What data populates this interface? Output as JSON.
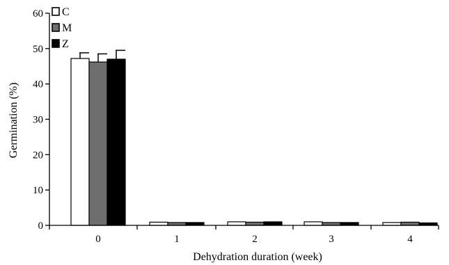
{
  "chart_data": {
    "type": "bar",
    "title": "",
    "xlabel": "Dehydration duration (week)",
    "ylabel": "Germination (%)",
    "ylim": [
      0,
      60
    ],
    "yticks": [
      0,
      10,
      20,
      30,
      40,
      50,
      60
    ],
    "categories": [
      "0",
      "1",
      "2",
      "3",
      "4"
    ],
    "series": [
      {
        "name": "C",
        "color": "#ffffff",
        "values": [
          47.2,
          0.9,
          1.0,
          1.0,
          0.8
        ],
        "errors": [
          1.6,
          0,
          0,
          0,
          0
        ]
      },
      {
        "name": "M",
        "color": "#6e6e6e",
        "values": [
          46.2,
          0.8,
          0.9,
          0.8,
          0.9
        ],
        "errors": [
          2.3,
          0,
          0,
          0,
          0
        ]
      },
      {
        "name": "Z",
        "color": "#000000",
        "values": [
          47.0,
          0.8,
          1.0,
          0.8,
          0.7
        ],
        "errors": [
          2.5,
          0,
          0,
          0,
          0
        ]
      }
    ],
    "legend_position": "top-left",
    "grid": false
  }
}
